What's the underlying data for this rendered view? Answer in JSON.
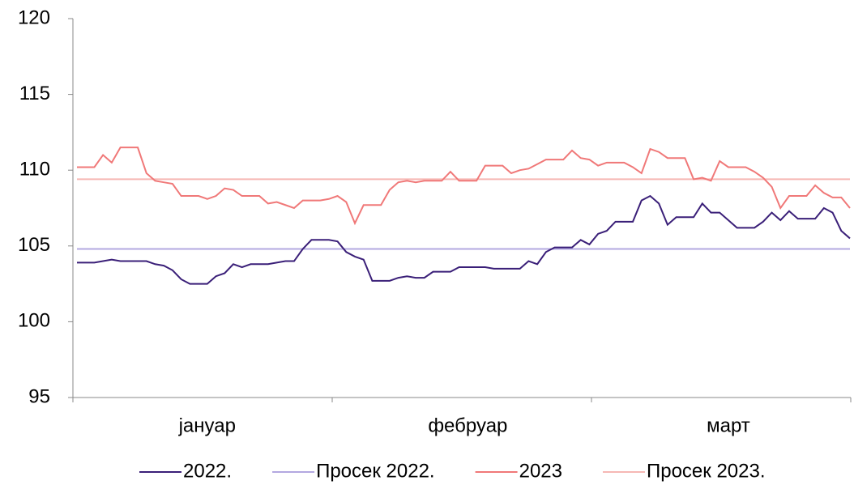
{
  "chart_data": {
    "type": "line",
    "categories": [
      null,
      null,
      null,
      null,
      null,
      null,
      null,
      null,
      null,
      null,
      null,
      null,
      null,
      null,
      null,
      "јануар",
      null,
      null,
      null,
      null,
      null,
      null,
      null,
      null,
      null,
      null,
      null,
      null,
      null,
      null,
      null,
      null,
      null,
      null,
      null,
      null,
      null,
      null,
      null,
      null,
      null,
      null,
      null,
      null,
      null,
      "фебруар",
      null,
      null,
      null,
      null,
      null,
      null,
      null,
      null,
      null,
      null,
      null,
      null,
      null,
      null,
      null,
      null,
      null,
      null,
      null,
      null,
      null,
      null,
      null,
      null,
      null,
      null,
      null,
      null,
      null,
      "март",
      null,
      null,
      null,
      null,
      null,
      null,
      null,
      null,
      null,
      null,
      null,
      null,
      null,
      null
    ],
    "series": [
      {
        "name": "2022.",
        "color": "#3a1f78",
        "values": [
          103.9,
          103.9,
          103.9,
          104.0,
          104.1,
          104.0,
          104.0,
          104.0,
          104.0,
          103.8,
          103.7,
          103.4,
          102.8,
          102.5,
          102.5,
          102.5,
          103.0,
          103.2,
          103.8,
          103.6,
          103.8,
          103.8,
          103.8,
          103.9,
          104.0,
          104.0,
          104.8,
          105.4,
          105.4,
          105.4,
          105.3,
          104.6,
          104.3,
          104.1,
          102.7,
          102.7,
          102.7,
          102.9,
          103.0,
          102.9,
          102.9,
          103.3,
          103.3,
          103.3,
          103.6,
          103.6,
          103.6,
          103.6,
          103.5,
          103.5,
          103.5,
          103.5,
          104.0,
          103.8,
          104.6,
          104.9,
          104.9,
          104.9,
          105.4,
          105.1,
          105.8,
          106.0,
          106.6,
          106.6,
          106.6,
          108.0,
          108.3,
          107.8,
          106.4,
          106.9,
          106.9,
          106.9,
          107.8,
          107.2,
          107.2,
          106.7,
          106.2,
          106.2,
          106.2,
          106.6,
          107.2,
          106.7,
          107.3,
          106.8,
          106.8,
          106.8,
          107.5,
          107.2,
          106.0,
          105.5
        ]
      },
      {
        "name": "Просек 2022.",
        "color": "#b3a8e0",
        "value": 104.8
      },
      {
        "name": "2023",
        "color": "#f07878",
        "values": [
          110.2,
          110.2,
          110.2,
          111.0,
          110.5,
          111.5,
          111.5,
          111.5,
          109.8,
          109.3,
          109.2,
          109.1,
          108.3,
          108.3,
          108.3,
          108.1,
          108.3,
          108.8,
          108.7,
          108.3,
          108.3,
          108.3,
          107.8,
          107.9,
          107.7,
          107.5,
          108.0,
          108.0,
          108.0,
          108.1,
          108.3,
          107.9,
          106.5,
          107.7,
          107.7,
          107.7,
          108.7,
          109.2,
          109.3,
          109.2,
          109.3,
          109.3,
          109.3,
          109.9,
          109.3,
          109.3,
          109.3,
          110.3,
          110.3,
          110.3,
          109.8,
          110.0,
          110.1,
          110.4,
          110.7,
          110.7,
          110.7,
          111.3,
          110.8,
          110.7,
          110.3,
          110.5,
          110.5,
          110.5,
          110.2,
          109.8,
          111.4,
          111.2,
          110.8,
          110.8,
          110.8,
          109.4,
          109.5,
          109.3,
          110.6,
          110.2,
          110.2,
          110.2,
          109.9,
          109.5,
          108.9,
          107.5,
          108.3,
          108.3,
          108.3,
          109.0,
          108.5,
          108.2,
          108.2,
          107.5
        ]
      },
      {
        "name": "Просек 2023.",
        "color": "#f6b8b4",
        "value": 109.4
      }
    ],
    "ylim": [
      95,
      120
    ],
    "yticks": [
      95,
      100,
      105,
      110,
      115,
      120
    ],
    "grid": false,
    "legend": "bottom"
  }
}
